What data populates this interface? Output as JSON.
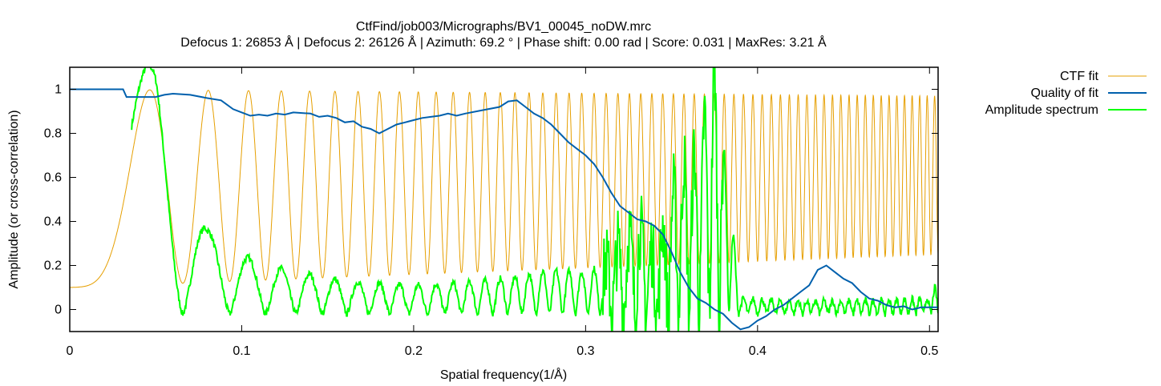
{
  "chart_data": {
    "type": "line",
    "title": "CtfFind/job003/Micrographs/BV1_00045_noDW.mrc",
    "subtitle": "Defocus 1: 26853 Å | Defocus 2: 26126 Å | Azimuth: 69.2 ° | Phase shift: 0.00 rad | Score: 0.031 | MaxRes: 3.21 Å",
    "xlabel": "Spatial frequency(1/Å)",
    "ylabel": "Amplitude (or cross-correlation)",
    "xlim": [
      0,
      0.505
    ],
    "ylim": [
      -0.1,
      1.1
    ],
    "xticks": [
      0,
      0.1,
      0.2,
      0.3,
      0.4,
      0.5
    ],
    "xtick_labels": [
      "0",
      "0.1",
      "0.2",
      "0.3",
      "0.4",
      "0.5"
    ],
    "yticks": [
      0,
      0.2,
      0.4,
      0.6,
      0.8,
      1
    ],
    "ytick_labels": [
      "0",
      "0.2",
      "0.4",
      "0.6",
      "0.8",
      "1"
    ],
    "grid": false,
    "legend_position": "outside-right",
    "series": [
      {
        "name": "CTF fit",
        "color": "#e69f00",
        "model": {
          "first_zero_x": 0.0465,
          "min_start": 0.1,
          "max_start": 1.0,
          "min_end": 0.25,
          "max_end": 0.97
        }
      },
      {
        "name": "Quality of fit",
        "color": "#0060ad",
        "points": [
          [
            0,
            1.0
          ],
          [
            0.031,
            1.0
          ],
          [
            0.033,
            0.965
          ],
          [
            0.05,
            0.965
          ],
          [
            0.055,
            0.975
          ],
          [
            0.06,
            0.98
          ],
          [
            0.07,
            0.975
          ],
          [
            0.08,
            0.96
          ],
          [
            0.088,
            0.95
          ],
          [
            0.095,
            0.91
          ],
          [
            0.1,
            0.895
          ],
          [
            0.105,
            0.88
          ],
          [
            0.11,
            0.885
          ],
          [
            0.115,
            0.88
          ],
          [
            0.12,
            0.89
          ],
          [
            0.125,
            0.885
          ],
          [
            0.13,
            0.895
          ],
          [
            0.14,
            0.89
          ],
          [
            0.145,
            0.875
          ],
          [
            0.15,
            0.88
          ],
          [
            0.155,
            0.87
          ],
          [
            0.16,
            0.85
          ],
          [
            0.165,
            0.855
          ],
          [
            0.17,
            0.83
          ],
          [
            0.175,
            0.82
          ],
          [
            0.18,
            0.8
          ],
          [
            0.185,
            0.82
          ],
          [
            0.19,
            0.84
          ],
          [
            0.195,
            0.85
          ],
          [
            0.2,
            0.86
          ],
          [
            0.205,
            0.87
          ],
          [
            0.21,
            0.875
          ],
          [
            0.215,
            0.88
          ],
          [
            0.22,
            0.89
          ],
          [
            0.225,
            0.88
          ],
          [
            0.23,
            0.89
          ],
          [
            0.24,
            0.905
          ],
          [
            0.25,
            0.92
          ],
          [
            0.255,
            0.945
          ],
          [
            0.26,
            0.95
          ],
          [
            0.265,
            0.92
          ],
          [
            0.27,
            0.89
          ],
          [
            0.275,
            0.87
          ],
          [
            0.28,
            0.84
          ],
          [
            0.285,
            0.8
          ],
          [
            0.29,
            0.76
          ],
          [
            0.295,
            0.73
          ],
          [
            0.3,
            0.7
          ],
          [
            0.305,
            0.66
          ],
          [
            0.31,
            0.6
          ],
          [
            0.315,
            0.53
          ],
          [
            0.32,
            0.47
          ],
          [
            0.325,
            0.44
          ],
          [
            0.33,
            0.41
          ],
          [
            0.335,
            0.4
          ],
          [
            0.34,
            0.38
          ],
          [
            0.345,
            0.34
          ],
          [
            0.35,
            0.26
          ],
          [
            0.355,
            0.17
          ],
          [
            0.36,
            0.1
          ],
          [
            0.365,
            0.05
          ],
          [
            0.37,
            0.03
          ],
          [
            0.375,
            0.0
          ],
          [
            0.38,
            -0.02
          ],
          [
            0.385,
            -0.06
          ],
          [
            0.39,
            -0.09
          ],
          [
            0.395,
            -0.08
          ],
          [
            0.4,
            -0.05
          ],
          [
            0.405,
            -0.03
          ],
          [
            0.41,
            0.0
          ],
          [
            0.415,
            0.02
          ],
          [
            0.42,
            0.05
          ],
          [
            0.425,
            0.08
          ],
          [
            0.43,
            0.11
          ],
          [
            0.435,
            0.18
          ],
          [
            0.44,
            0.2
          ],
          [
            0.445,
            0.17
          ],
          [
            0.45,
            0.14
          ],
          [
            0.455,
            0.12
          ],
          [
            0.46,
            0.08
          ],
          [
            0.465,
            0.05
          ],
          [
            0.47,
            0.04
          ],
          [
            0.475,
            0.02
          ],
          [
            0.48,
            0.01
          ],
          [
            0.485,
            0.015
          ],
          [
            0.49,
            0.0
          ],
          [
            0.495,
            0.01
          ],
          [
            0.5,
            0.01
          ],
          [
            0.505,
            0.01
          ]
        ]
      },
      {
        "name": "Amplitude spectrum",
        "color": "#00ff00",
        "model": {
          "peaks": [
            [
              0.036,
              1.15
            ],
            [
              0.0505,
              1.09
            ],
            [
              0.0665,
              0.59
            ],
            [
              0.08,
              0.36
            ],
            [
              0.092,
              0.29
            ],
            [
              0.105,
              0.23
            ],
            [
              0.12,
              0.19
            ],
            [
              0.14,
              0.16
            ],
            [
              0.16,
              0.13
            ],
            [
              0.18,
              0.12
            ],
            [
              0.2,
              0.11
            ],
            [
              0.22,
              0.12
            ],
            [
              0.24,
              0.13
            ],
            [
              0.26,
              0.15
            ],
            [
              0.28,
              0.18
            ],
            [
              0.3,
              0.17
            ],
            [
              0.31,
              0.2
            ],
            [
              0.32,
              0.3
            ],
            [
              0.33,
              0.4
            ],
            [
              0.34,
              0.25
            ],
            [
              0.355,
              0.65
            ],
            [
              0.365,
              0.72
            ],
            [
              0.375,
              1.12
            ],
            [
              0.39,
              0.05
            ],
            [
              0.42,
              0.04
            ],
            [
              0.46,
              0.04
            ],
            [
              0.5,
              0.05
            ],
            [
              0.505,
              0.13
            ]
          ]
        }
      }
    ]
  }
}
